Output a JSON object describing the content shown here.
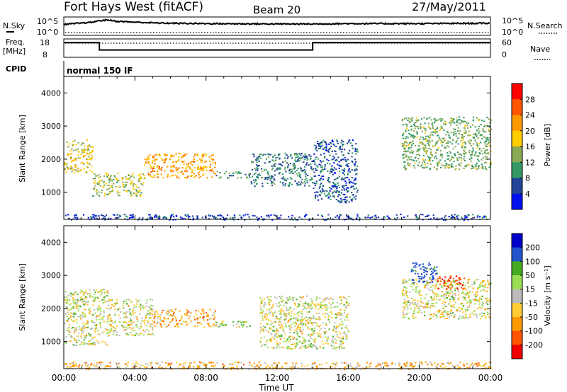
{
  "header": {
    "title": "Fort Hays West (fitACF)",
    "beam": "Beam 20",
    "date": "27/May/2011"
  },
  "panels": {
    "nsky": {
      "label": "N.Sky",
      "ticks": [
        "10^5",
        "10^0"
      ],
      "right_label": "N.Search",
      "right_ticks": [
        "10^5",
        "10^0"
      ]
    },
    "freq": {
      "label_line1": "Freq.",
      "label_line2": "[MHz]",
      "ticks": [
        "18",
        "8"
      ],
      "right_label": "Nave",
      "right_ticks": [
        "60",
        "0"
      ]
    },
    "cpid": {
      "label": "CPID",
      "value": "normal 150 IF"
    }
  },
  "colorbars": {
    "power": {
      "title": "Power [dB]",
      "labels": [
        "28",
        "24",
        "20",
        "16",
        "12",
        "8",
        "4"
      ],
      "colors": [
        "#ff0000",
        "#ff5500",
        "#ff9900",
        "#ffcc00",
        "#88aa55",
        "#339966",
        "#224499",
        "#0011ee"
      ]
    },
    "velocity": {
      "title": "Velocity [m s⁻¹]",
      "labels": [
        "200",
        "100",
        "50",
        "15",
        "-15",
        "-50",
        "-100",
        "-200"
      ],
      "colors": [
        "#0000cc",
        "#2255cc",
        "#44aa22",
        "#99dd55",
        "#bbbbbb",
        "#ffcc33",
        "#ff9900",
        "#ff5500",
        "#ee0000"
      ]
    }
  },
  "xaxis": {
    "label": "Time UT",
    "ticks": [
      "00:00",
      "04:00",
      "08:00",
      "12:00",
      "16:00",
      "20:00",
      "00:00"
    ]
  },
  "yaxis": {
    "label": "Slant Range [km]",
    "ticks": [
      "4000",
      "3000",
      "2000",
      "1000"
    ]
  },
  "chart_data": [
    {
      "type": "heatmap",
      "title": "Power [dB]",
      "xlabel": "Time UT",
      "ylabel": "Slant Range [km]",
      "xlim": [
        0,
        24
      ],
      "ylim": [
        180,
        4500
      ],
      "clim": [
        0,
        30
      ],
      "regions": [
        {
          "t0": 0.0,
          "t1": 1.6,
          "r0": 1600,
          "r1": 2600,
          "value": 16
        },
        {
          "t0": 1.6,
          "t1": 4.5,
          "r0": 900,
          "r1": 1600,
          "value": 14
        },
        {
          "t0": 4.5,
          "t1": 8.5,
          "r0": 1450,
          "r1": 2200,
          "value": 20
        },
        {
          "t0": 8.5,
          "t1": 10.5,
          "r0": 1450,
          "r1": 1650,
          "value": 10
        },
        {
          "t0": 10.5,
          "t1": 14.0,
          "r0": 1200,
          "r1": 2200,
          "value": 8
        },
        {
          "t0": 14.0,
          "t1": 16.5,
          "r0": 700,
          "r1": 2600,
          "value": 6
        },
        {
          "t0": 19.0,
          "t1": 24.0,
          "r0": 1700,
          "r1": 3300,
          "value": 12
        },
        {
          "t0": 0.0,
          "t1": 24.0,
          "r0": 180,
          "r1": 350,
          "value": 5
        }
      ]
    },
    {
      "type": "heatmap",
      "title": "Velocity [m s⁻¹]",
      "xlabel": "Time UT",
      "ylabel": "Slant Range [km]",
      "xlim": [
        0,
        24
      ],
      "ylim": [
        180,
        4500
      ],
      "clim": [
        -250,
        250
      ],
      "regions": [
        {
          "t0": 0.0,
          "t1": 2.5,
          "r0": 900,
          "r1": 2600,
          "value": 0
        },
        {
          "t0": 2.5,
          "t1": 5.0,
          "r0": 1200,
          "r1": 2300,
          "value": 0
        },
        {
          "t0": 5.0,
          "t1": 8.5,
          "r0": 1450,
          "r1": 2000,
          "value": -60
        },
        {
          "t0": 8.5,
          "t1": 10.5,
          "r0": 1450,
          "r1": 1650,
          "value": 30
        },
        {
          "t0": 11.0,
          "t1": 16.0,
          "r0": 800,
          "r1": 2400,
          "value": 0
        },
        {
          "t0": 19.0,
          "t1": 24.0,
          "r0": 1700,
          "r1": 2900,
          "value": 0
        },
        {
          "t0": 19.5,
          "t1": 21.0,
          "r0": 2800,
          "r1": 3400,
          "value": 150
        },
        {
          "t0": 21.0,
          "t1": 22.5,
          "r0": 2600,
          "r1": 3000,
          "value": -180
        },
        {
          "t0": 0.0,
          "t1": 24.0,
          "r0": 180,
          "r1": 400,
          "value": -50
        }
      ]
    },
    {
      "type": "line",
      "title": "N.Sky",
      "x": [
        0,
        1.5,
        2,
        2.5,
        3,
        4,
        5,
        6,
        8,
        12,
        14,
        16,
        20,
        24
      ],
      "y": [
        3,
        3.5,
        4,
        4.2,
        3.8,
        3.6,
        3.4,
        3.3,
        3.2,
        3.1,
        3.1,
        3.2,
        3.2,
        3.3
      ]
    },
    {
      "type": "line",
      "title": "Freq.",
      "x": [
        0,
        2,
        2,
        14,
        14,
        24
      ],
      "y": [
        16,
        16,
        12,
        12,
        16,
        16
      ]
    }
  ]
}
